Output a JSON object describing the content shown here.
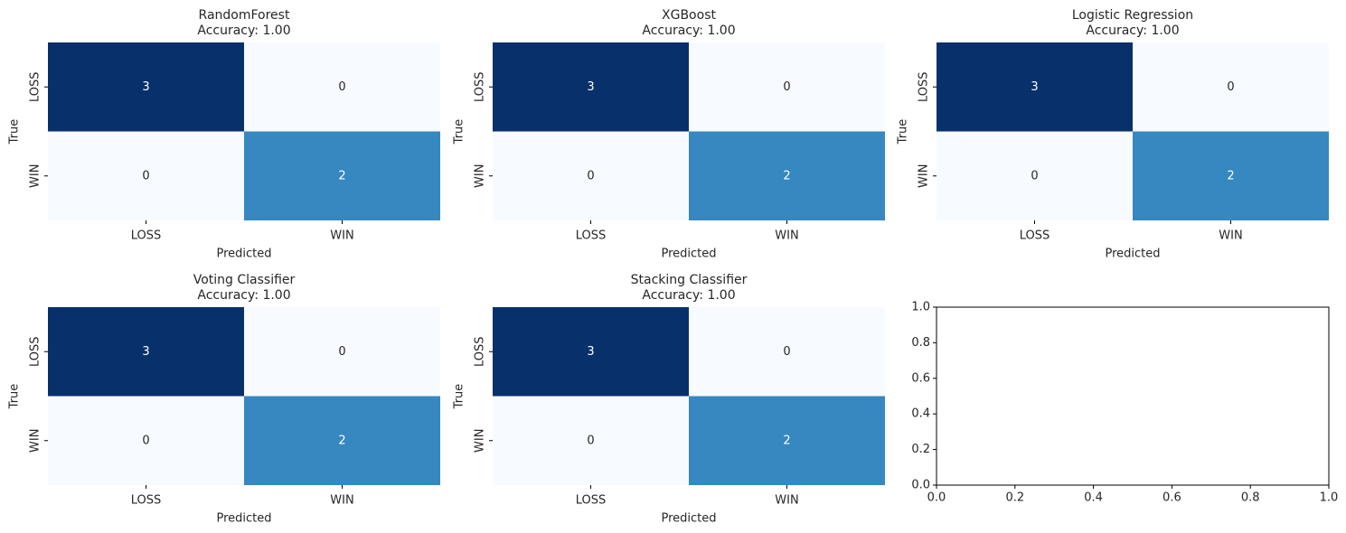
{
  "chart_data": [
    {
      "type": "heatmap",
      "title": "RandomForest",
      "subtitle": "Accuracy: 1.00",
      "xlabel": "Predicted",
      "ylabel": "True",
      "categories": [
        "LOSS",
        "WIN"
      ],
      "matrix": [
        [
          3,
          0
        ],
        [
          0,
          2
        ]
      ],
      "vmin": 0,
      "vmax": 3,
      "colormap": "Blues",
      "colorbar": false,
      "cell_labels": [
        [
          "3",
          "0"
        ],
        [
          "0",
          "2"
        ]
      ]
    },
    {
      "type": "heatmap",
      "title": "XGBoost",
      "subtitle": "Accuracy: 1.00",
      "xlabel": "Predicted",
      "ylabel": "True",
      "categories": [
        "LOSS",
        "WIN"
      ],
      "matrix": [
        [
          3,
          0
        ],
        [
          0,
          2
        ]
      ],
      "vmin": 0,
      "vmax": 3,
      "colormap": "Blues",
      "colorbar": false,
      "cell_labels": [
        [
          "3",
          "0"
        ],
        [
          "0",
          "2"
        ]
      ]
    },
    {
      "type": "heatmap",
      "title": "Logistic Regression",
      "subtitle": "Accuracy: 1.00",
      "xlabel": "Predicted",
      "ylabel": "True",
      "categories": [
        "LOSS",
        "WIN"
      ],
      "matrix": [
        [
          3,
          0
        ],
        [
          0,
          2
        ]
      ],
      "vmin": 0,
      "vmax": 3,
      "colormap": "Blues",
      "colorbar": false,
      "cell_labels": [
        [
          "3",
          "0"
        ],
        [
          "0",
          "2"
        ]
      ]
    },
    {
      "type": "heatmap",
      "title": "Voting Classifier",
      "subtitle": "Accuracy: 1.00",
      "xlabel": "Predicted",
      "ylabel": "True",
      "categories": [
        "LOSS",
        "WIN"
      ],
      "matrix": [
        [
          3,
          0
        ],
        [
          0,
          2
        ]
      ],
      "vmin": 0,
      "vmax": 3,
      "colormap": "Blues",
      "colorbar": false,
      "cell_labels": [
        [
          "3",
          "0"
        ],
        [
          "0",
          "2"
        ]
      ]
    },
    {
      "type": "heatmap",
      "title": "Stacking Classifier",
      "subtitle": "Accuracy: 1.00",
      "xlabel": "Predicted",
      "ylabel": "True",
      "categories": [
        "LOSS",
        "WIN"
      ],
      "matrix": [
        [
          3,
          0
        ],
        [
          0,
          2
        ]
      ],
      "vmin": 0,
      "vmax": 3,
      "colormap": "Blues",
      "colorbar": false,
      "cell_labels": [
        [
          "3",
          "0"
        ],
        [
          "0",
          "2"
        ]
      ]
    },
    {
      "type": "line",
      "title": "",
      "xlabel": "",
      "ylabel": "",
      "series": [],
      "xlim": [
        0.0,
        1.0
      ],
      "ylim": [
        0.0,
        1.0
      ],
      "xticks": [
        "0.0",
        "0.2",
        "0.4",
        "0.6",
        "0.8",
        "1.0"
      ],
      "yticks": [
        "0.0",
        "0.2",
        "0.4",
        "0.6",
        "0.8",
        "1.0"
      ],
      "grid": false
    }
  ],
  "colors": {
    "blues_low": "#f7fbff",
    "blues_mid": "#3787c0",
    "blues_high": "#08306b",
    "text_dark": "#262626",
    "text_light": "#ffffff",
    "axis": "#000000",
    "background": "#ffffff"
  }
}
